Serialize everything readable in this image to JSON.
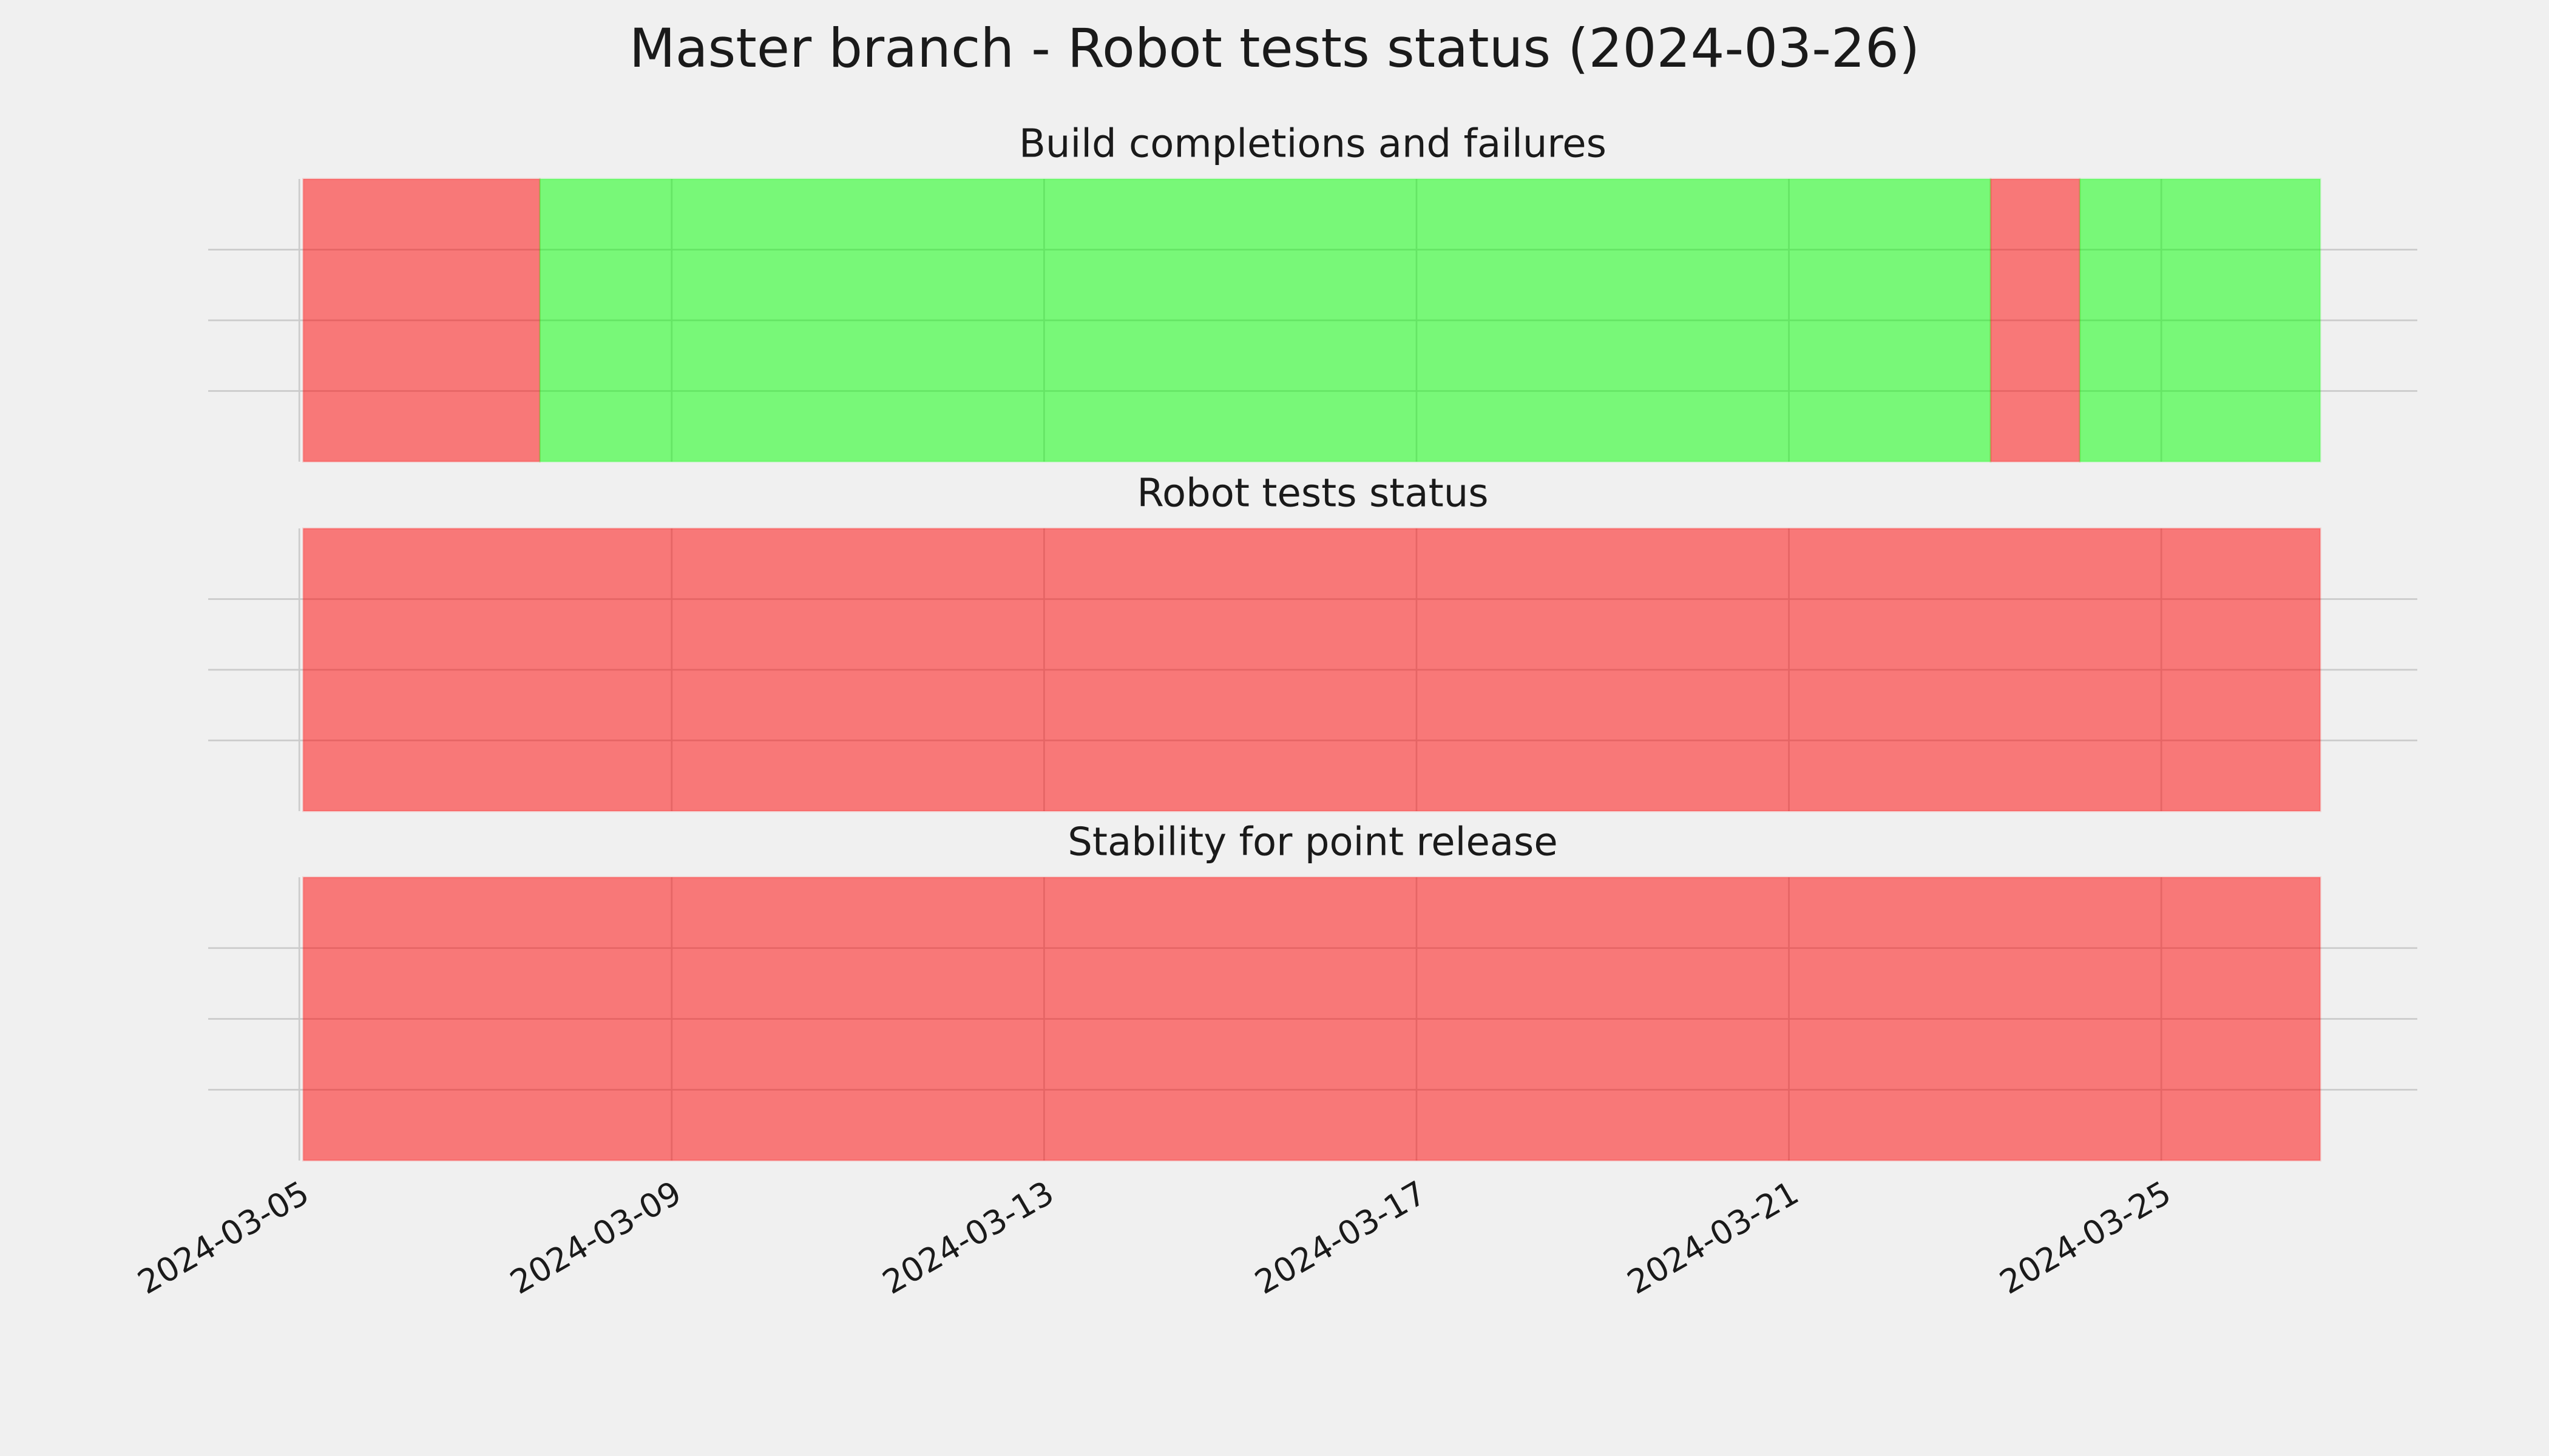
{
  "title": "Master branch - Robot tests status (2024-03-26)",
  "chart_data": [
    {
      "type": "timeline",
      "title": "Build completions and failures",
      "spans": [
        {
          "start": "2024-03-05T01:00",
          "end": "2024-03-07T14:00",
          "color": "#ff0000"
        },
        {
          "start": "2024-03-07T14:00",
          "end": "2024-03-23T04:00",
          "color": "#00ff00"
        },
        {
          "start": "2024-03-23T04:00",
          "end": "2024-03-24T03:00",
          "color": "#ff0000"
        },
        {
          "start": "2024-03-24T03:00",
          "end": "2024-03-26T17:00",
          "color": "#00ff00"
        }
      ],
      "xlim": [
        "2024-03-04T00:30",
        "2024-03-27T18:00"
      ],
      "xticks": [
        "2024-03-05",
        "2024-03-09",
        "2024-03-13",
        "2024-03-17",
        "2024-03-21",
        "2024-03-25"
      ],
      "ylim": [
        0,
        1
      ],
      "yticks": [
        0.25,
        0.5,
        0.75
      ],
      "grid": true
    },
    {
      "type": "timeline",
      "title": "Robot tests status",
      "spans": [
        {
          "start": "2024-03-05T01:00",
          "end": "2024-03-26T17:00",
          "color": "#ff0000"
        }
      ],
      "xlim": [
        "2024-03-04T00:30",
        "2024-03-27T18:00"
      ],
      "xticks": [
        "2024-03-05",
        "2024-03-09",
        "2024-03-13",
        "2024-03-17",
        "2024-03-21",
        "2024-03-25"
      ],
      "ylim": [
        0,
        1
      ],
      "yticks": [
        0.25,
        0.5,
        0.75
      ],
      "grid": true
    },
    {
      "type": "timeline",
      "title": "Stability for point release",
      "spans": [
        {
          "start": "2024-03-05T01:00",
          "end": "2024-03-26T17:00",
          "color": "#ff0000"
        }
      ],
      "xlim": [
        "2024-03-04T00:30",
        "2024-03-27T18:00"
      ],
      "xticks": [
        "2024-03-05",
        "2024-03-09",
        "2024-03-13",
        "2024-03-17",
        "2024-03-21",
        "2024-03-25"
      ],
      "ylim": [
        0,
        1
      ],
      "yticks": [
        0.25,
        0.5,
        0.75
      ],
      "grid": true
    }
  ]
}
